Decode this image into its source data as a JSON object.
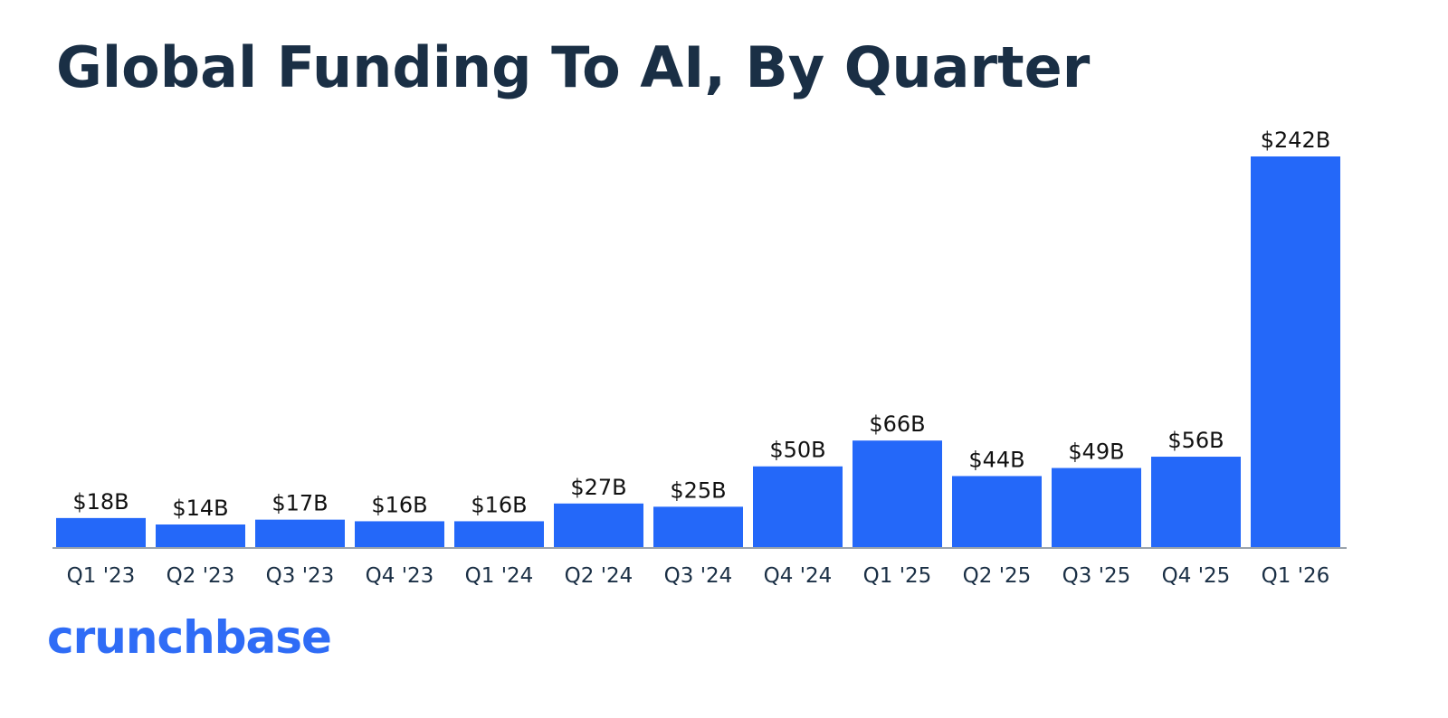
{
  "chart_data": {
    "type": "bar",
    "title": "Global Funding To AI, By Quarter",
    "xlabel": "",
    "ylabel": "",
    "unit": "$B",
    "ylim": [
      0,
      242
    ],
    "grid": false,
    "categories": [
      "Q1 '23",
      "Q2 '23",
      "Q3 '23",
      "Q4 '23",
      "Q1 '24",
      "Q2 '24",
      "Q3 '24",
      "Q4 '24",
      "Q1 '25",
      "Q2 '25",
      "Q3 '25",
      "Q4 '25",
      "Q1 '26"
    ],
    "values": [
      18,
      14,
      17,
      16,
      16,
      27,
      25,
      50,
      66,
      44,
      49,
      56,
      242
    ],
    "labels": [
      "$18B",
      "$14B",
      "$17B",
      "$16B",
      "$16B",
      "$27B",
      "$25B",
      "$50B",
      "$66B",
      "$44B",
      "$49B",
      "$56B",
      "$242B"
    ],
    "bar_color": "#2468f9",
    "axis_color": "#9aa3ab"
  },
  "brand": {
    "logo_text": "crunchbase",
    "color": "#2f6cf6"
  }
}
